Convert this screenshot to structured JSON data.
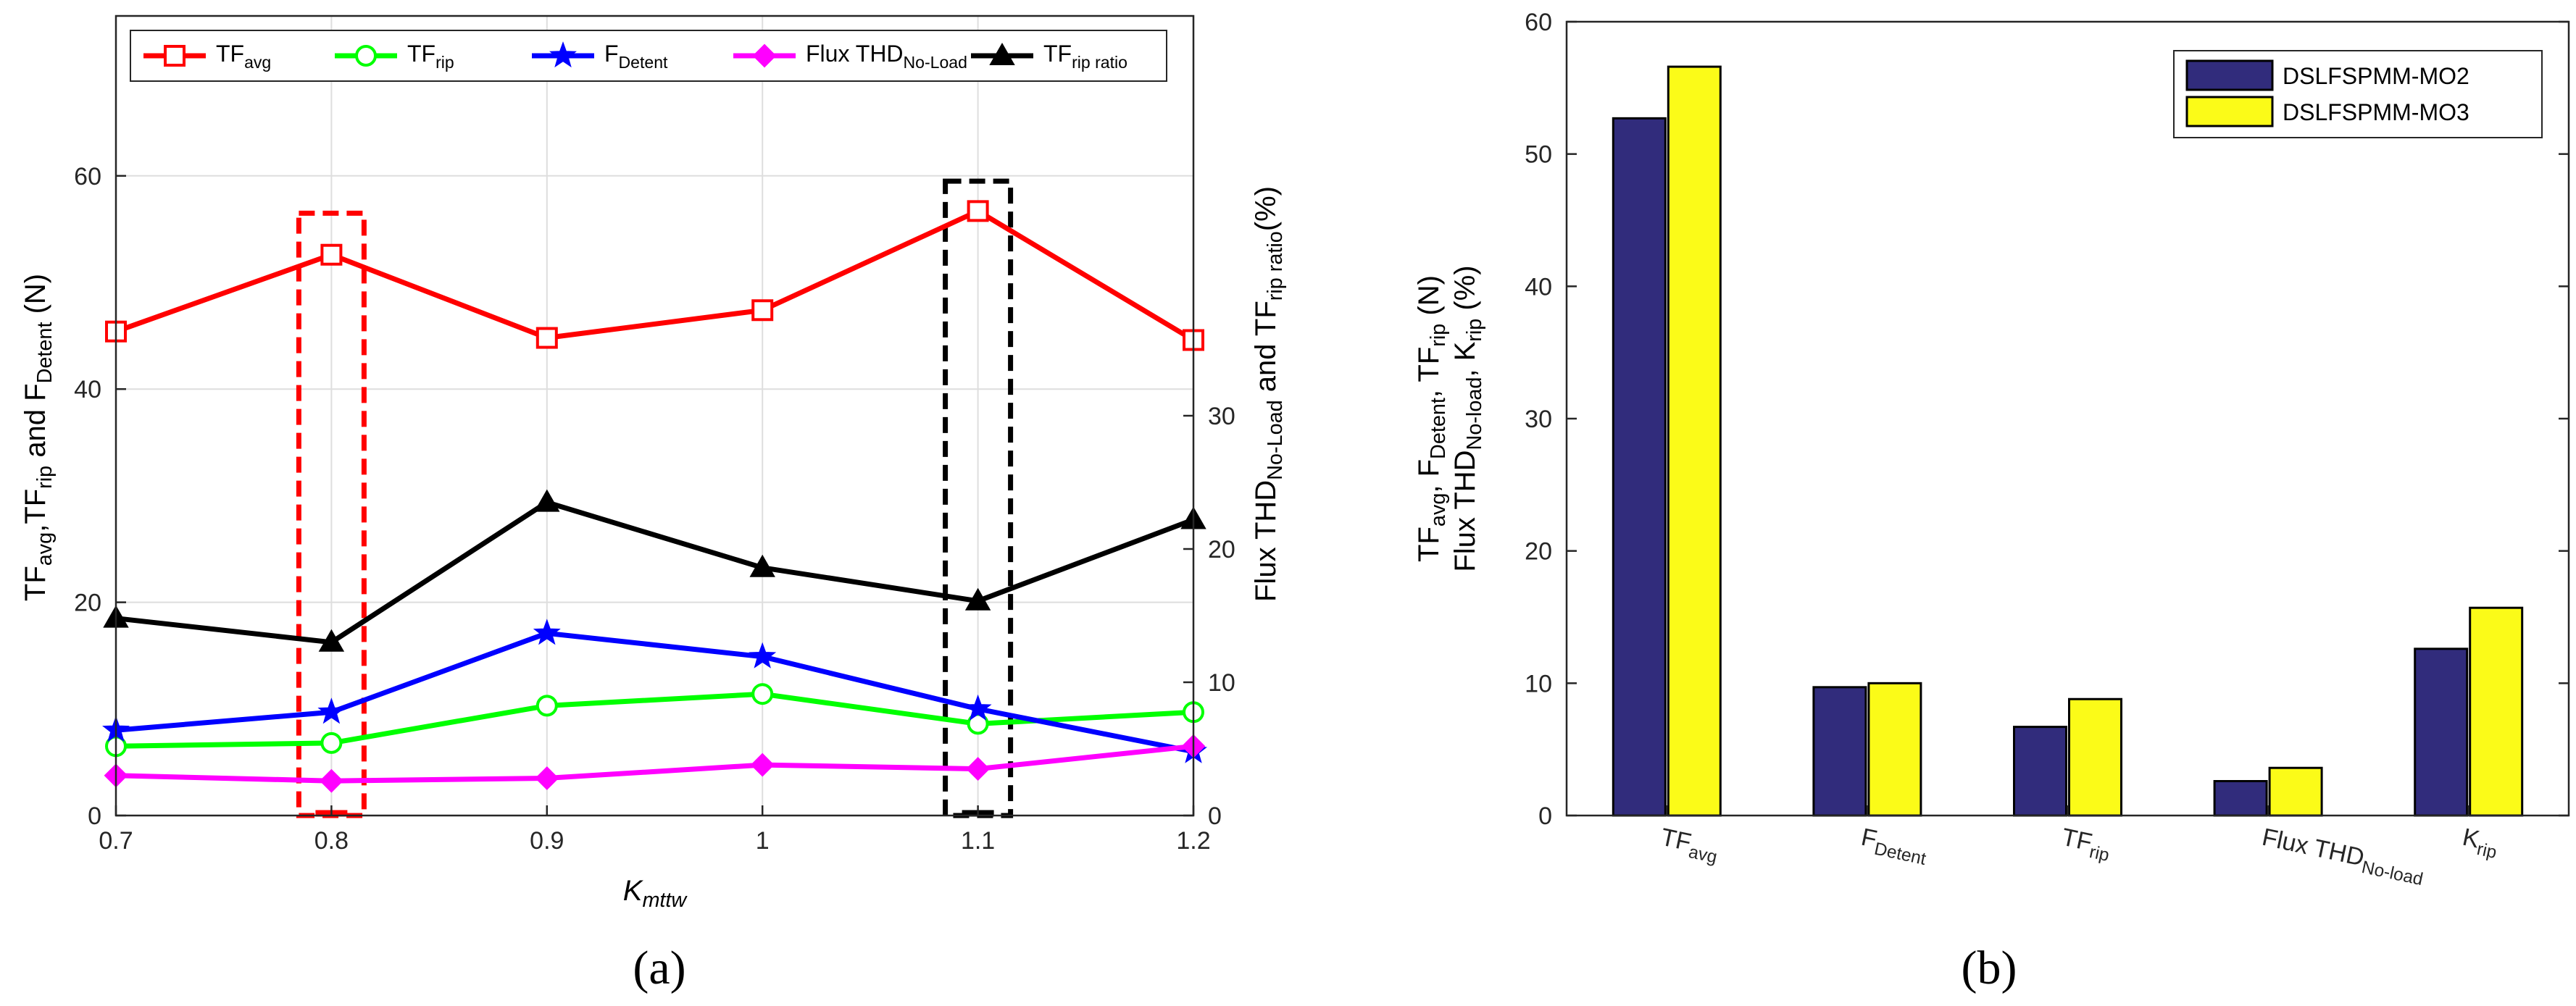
{
  "chart_data": [
    {
      "panel_label": "(a)",
      "type": "line",
      "x": [
        0.7,
        0.8,
        0.9,
        1,
        1.1,
        1.2
      ],
      "x_tick_labels": [
        "0.7",
        "0.8",
        "0.9",
        "1",
        "1.1",
        "1.2"
      ],
      "xlim": [
        0.7,
        1.2
      ],
      "xlabel": {
        "main": "K",
        "sub": "mttw"
      },
      "ylim_left": [
        0,
        75
      ],
      "y_ticks_left": [
        0,
        20,
        40,
        60
      ],
      "ylim_right": [
        0,
        60
      ],
      "y_ticks_right": [
        0,
        10,
        20,
        30
      ],
      "ylabel_left": [
        {
          "t": "TF"
        },
        {
          "t": "avg",
          "sub": true
        },
        {
          "t": ",TF"
        },
        {
          "t": "rip",
          "sub": true
        },
        {
          "t": " and F"
        },
        {
          "t": "Detent",
          "sub": true
        },
        {
          "t": " (N)"
        }
      ],
      "ylabel_right": [
        {
          "t": "Flux THD"
        },
        {
          "t": "No-Load",
          "sub": true
        },
        {
          "t": " and TF"
        },
        {
          "t": "rip ratio",
          "sub": true
        },
        {
          "t": "(%)"
        }
      ],
      "grid": true,
      "legend_position": "top",
      "series": [
        {
          "label": [
            {
              "t": "TF"
            },
            {
              "t": "avg",
              "sub": true
            }
          ],
          "color": "#ff0000",
          "marker": "square",
          "axis": "left",
          "values": [
            45.4,
            52.6,
            44.8,
            47.4,
            56.7,
            44.6
          ]
        },
        {
          "label": [
            {
              "t": "TF"
            },
            {
              "t": "rip",
              "sub": true
            }
          ],
          "color": "#00ff00",
          "marker": "circle",
          "axis": "left",
          "values": [
            6.5,
            6.8,
            10.3,
            11.4,
            8.6,
            9.7
          ]
        },
        {
          "label": [
            {
              "t": "F"
            },
            {
              "t": "Detent",
              "sub": true
            }
          ],
          "color": "#0000ff",
          "marker": "star",
          "axis": "left",
          "values": [
            8.0,
            9.7,
            17.1,
            14.9,
            10.0,
            6.0
          ]
        },
        {
          "label": [
            {
              "t": "Flux THD"
            },
            {
              "t": "No-Load",
              "sub": true
            }
          ],
          "color": "#ff00ff",
          "marker": "diamond",
          "axis": "right",
          "values": [
            3.0,
            2.6,
            2.8,
            3.8,
            3.5,
            5.2
          ]
        },
        {
          "label": [
            {
              "t": "TF"
            },
            {
              "t": "rip ratio",
              "sub": true
            }
          ],
          "color": "#000000",
          "marker": "triangle",
          "axis": "right",
          "values": [
            14.8,
            13.0,
            23.5,
            18.6,
            16.1,
            22.2
          ]
        }
      ],
      "highlights": [
        {
          "x": 0.8,
          "y_top": 56.5,
          "color": "#ff0000"
        },
        {
          "x": 1.1,
          "y_top": 59.5,
          "color": "#000000"
        }
      ]
    },
    {
      "panel_label": "(b)",
      "type": "bar",
      "categories": [
        [
          {
            "t": "TF"
          },
          {
            "t": "avg",
            "sub": true
          }
        ],
        [
          {
            "t": "F"
          },
          {
            "t": "Detent",
            "sub": true
          }
        ],
        [
          {
            "t": "TF"
          },
          {
            "t": "rip",
            "sub": true
          }
        ],
        [
          {
            "t": "Flux THD"
          },
          {
            "t": "No-load",
            "sub": true
          }
        ],
        [
          {
            "t": "K"
          },
          {
            "t": "rip",
            "sub": true
          }
        ]
      ],
      "ylim": [
        0,
        60
      ],
      "y_ticks": [
        0,
        10,
        20,
        30,
        40,
        50,
        60
      ],
      "ylabel_line1": [
        {
          "t": "TF"
        },
        {
          "t": "avg",
          "sub": true
        },
        {
          "t": ", F"
        },
        {
          "t": "Detent",
          "sub": true
        },
        {
          "t": ", TF"
        },
        {
          "t": "rip",
          "sub": true
        },
        {
          "t": " (N)"
        }
      ],
      "ylabel_line2": [
        {
          "t": "Flux THD"
        },
        {
          "t": "No-load",
          "sub": true
        },
        {
          "t": ", K"
        },
        {
          "t": "rip",
          "sub": true
        },
        {
          "t": " (%)"
        }
      ],
      "grid": false,
      "legend_position": "top-right",
      "series": [
        {
          "name": "DSLFSPMM-MO2",
          "color": "#312c7c",
          "values": [
            52.7,
            9.7,
            6.7,
            2.6,
            12.6
          ]
        },
        {
          "name": "DSLFSPMM-MO3",
          "color": "#fbfb18",
          "values": [
            56.6,
            10.0,
            8.8,
            3.6,
            15.7
          ]
        }
      ]
    }
  ]
}
